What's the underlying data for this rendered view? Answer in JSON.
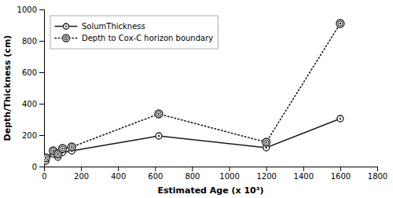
{
  "chart_data": {
    "type": "line",
    "x": [
      10,
      50,
      75,
      100,
      150,
      620,
      1200,
      1600
    ],
    "series": [
      {
        "name": "SolumThickness",
        "color": "#1a1a1a",
        "line_style": "solid",
        "marker": "circle",
        "values": [
          35,
          80,
          60,
          90,
          100,
          195,
          120,
          305
        ]
      },
      {
        "name": "Depth to Cox-C horizon boundary",
        "color": "#1a1a1a",
        "line_style": "dotted",
        "marker": "double-circle",
        "values": [
          55,
          100,
          80,
          115,
          125,
          335,
          155,
          910
        ]
      }
    ],
    "x_label": "Estimated Age (x 10³)",
    "y_label": "Depth/Thickness (cm)",
    "xlim": [
      0,
      1800
    ],
    "ylim": [
      0,
      1000
    ],
    "xticks": [
      0,
      200,
      400,
      600,
      800,
      1000,
      1200,
      1400,
      1600,
      1800
    ],
    "yticks": [
      0,
      200,
      400,
      600,
      800,
      1000
    ],
    "grid": false,
    "legend": "upper-left"
  }
}
